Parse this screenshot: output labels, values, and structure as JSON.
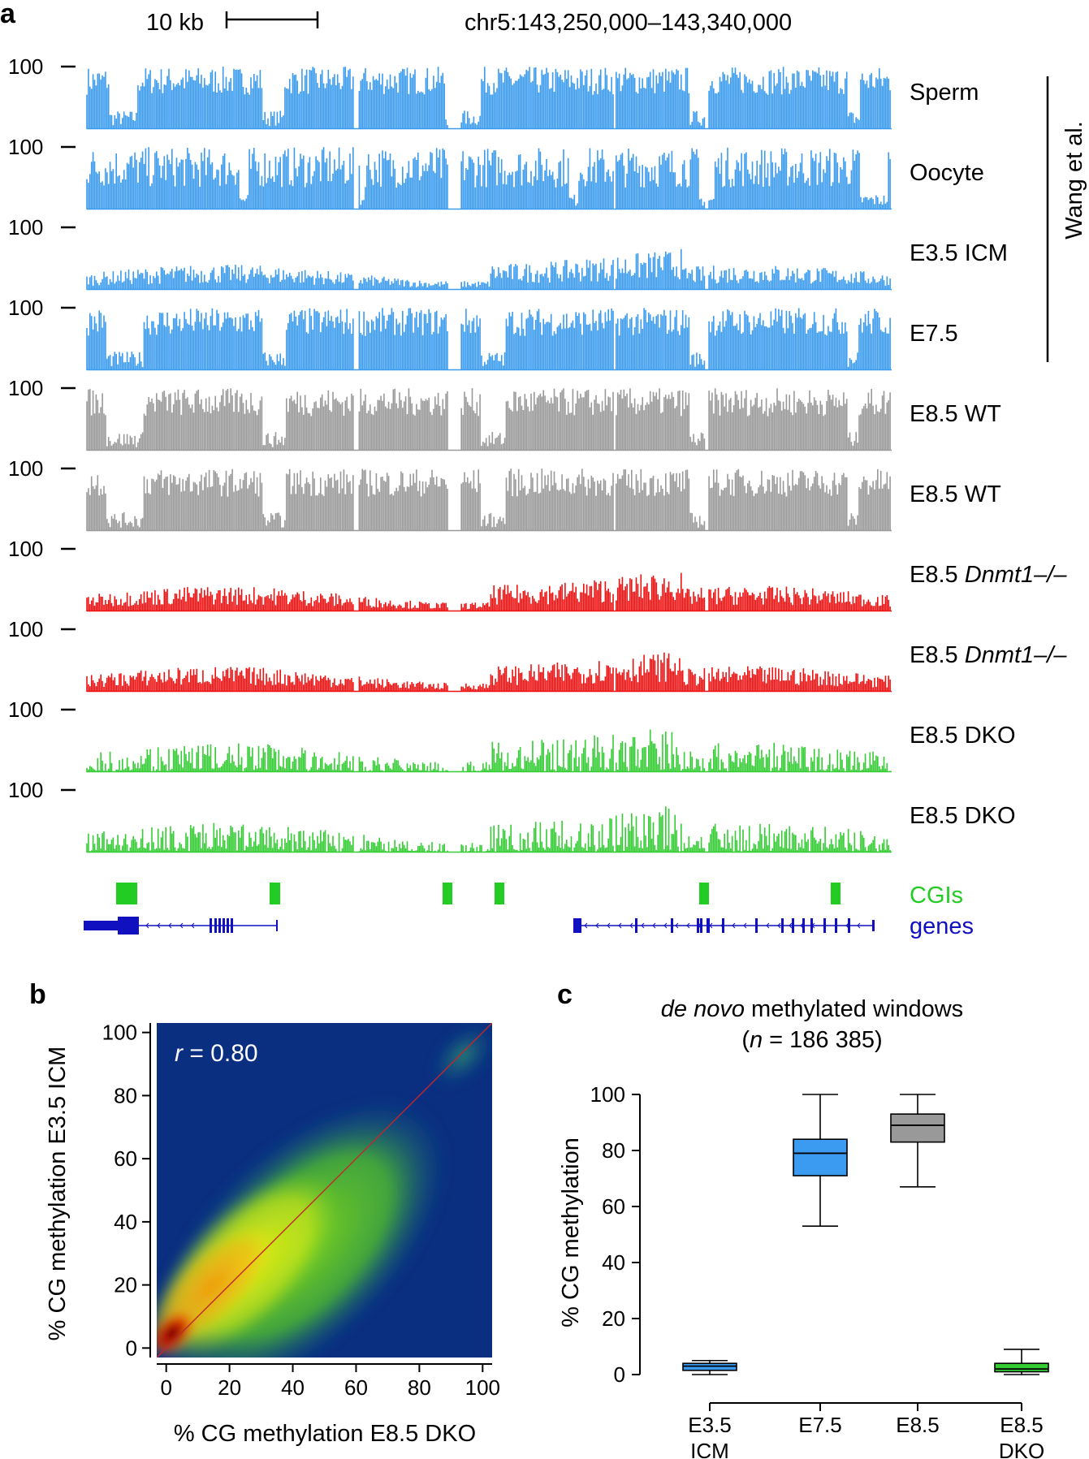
{
  "panel_a": {
    "letter": "a",
    "scale_label": "10 kb",
    "coords": "chr5:143,250,000–143,340,000",
    "y_tick": "100",
    "group_label": "Wang et al.",
    "tracks": [
      {
        "label": "Sperm",
        "italic": "",
        "color": "#3a9bf0",
        "profile": "sperm"
      },
      {
        "label": "Oocyte",
        "italic": "",
        "color": "#3a9bf0",
        "profile": "oocyte"
      },
      {
        "label": "E3.5 ICM",
        "italic": "",
        "color": "#3a9bf0",
        "profile": "icm"
      },
      {
        "label": "E7.5",
        "italic": "",
        "color": "#3a9bf0",
        "profile": "high"
      },
      {
        "label": "E8.5 WT",
        "italic": "",
        "color": "#999999",
        "profile": "high"
      },
      {
        "label": "E8.5 WT",
        "italic": "",
        "color": "#999999",
        "profile": "high"
      },
      {
        "label": "E8.5 ",
        "italic": "Dnmt1–/–",
        "color": "#f01010",
        "profile": "low"
      },
      {
        "label": "E8.5 ",
        "italic": "Dnmt1–/–",
        "color": "#f01010",
        "profile": "low"
      },
      {
        "label": "E8.5 DKO",
        "italic": "",
        "color": "#33cc33",
        "profile": "dko"
      },
      {
        "label": "E8.5 DKO",
        "italic": "",
        "color": "#33cc33",
        "profile": "dko"
      }
    ],
    "cgi_label": "CGIs",
    "cgi_color": "#22cc22",
    "genes_label": "genes",
    "genes_color": "#1010c0"
  },
  "panel_b": {
    "letter": "b",
    "annotation_prefix": "r",
    "annotation_value": " = 0.80",
    "xlabel": "% CG methylation E8.5 DKO",
    "ylabel": "% CG methylation E3.5 ICM"
  },
  "panel_c": {
    "letter": "c",
    "title_italic": "de novo",
    "title_rest": " methylated windows",
    "subtitle_open": "(",
    "subtitle_n": "n",
    "subtitle_rest": " = 186 385)",
    "ylabel": "% CG methylation"
  },
  "chart_data": [
    {
      "type": "bar",
      "title": "chr5:143,250,000–143,340,000",
      "description_fields": "genome browser tracks of % CG methylation (0-100) per track",
      "ylim": [
        0,
        100
      ],
      "series": [
        {
          "name": "Sperm",
          "level": "high with unmethylated gaps"
        },
        {
          "name": "Oocyte",
          "level": "high"
        },
        {
          "name": "E3.5 ICM",
          "level": "low (~20-40)"
        },
        {
          "name": "E7.5",
          "level": "high"
        },
        {
          "name": "E8.5 WT",
          "level": "high"
        },
        {
          "name": "E8.5 WT",
          "level": "high"
        },
        {
          "name": "E8.5 Dnmt1–/–",
          "level": "low (~20-40)"
        },
        {
          "name": "E8.5 Dnmt1–/–",
          "level": "low (~20-40)"
        },
        {
          "name": "E8.5 DKO",
          "level": "low (~10-50)"
        },
        {
          "name": "E8.5 DKO",
          "level": "low (~10-50)"
        }
      ]
    },
    {
      "type": "heatmap",
      "title": "",
      "annotation": "r = 0.80",
      "xlabel": "% CG methylation E8.5 DKO",
      "ylabel": "% CG methylation E3.5 ICM",
      "xlim": [
        -3,
        103
      ],
      "ylim": [
        -3,
        103
      ],
      "xticks": [
        0,
        20,
        40,
        60,
        80,
        100
      ],
      "yticks": [
        0,
        20,
        40,
        60,
        80,
        100
      ],
      "density_peak": [
        2,
        3
      ],
      "diagonal": true
    },
    {
      "type": "box",
      "title": "de novo methylated windows (n = 186 385)",
      "ylabel": "% CG methylation",
      "ylim": [
        0,
        100
      ],
      "yticks": [
        0,
        20,
        40,
        60,
        80,
        100
      ],
      "categories": [
        "E3.5 ICM",
        "E7.5",
        "E8.5",
        "E8.5 DKO"
      ],
      "boxes": [
        {
          "label1": "E3.5",
          "label2": "ICM",
          "whisker_low": 0,
          "q1": 1.5,
          "median": 3,
          "q3": 4,
          "whisker_high": 5,
          "color": "#3a9bf0"
        },
        {
          "label1": "E7.5",
          "label2": "",
          "whisker_low": 53,
          "q1": 71,
          "median": 79,
          "q3": 84,
          "whisker_high": 100,
          "color": "#3a9bf0"
        },
        {
          "label1": "E8.5",
          "label2": "",
          "whisker_low": 67,
          "q1": 83,
          "median": 89,
          "q3": 93,
          "whisker_high": 100,
          "color": "#999999"
        },
        {
          "label1": "E8.5",
          "label2": "DKO",
          "whisker_low": 0,
          "q1": 1,
          "median": 2,
          "q3": 4,
          "whisker_high": 9,
          "color": "#33cc33"
        }
      ]
    }
  ]
}
